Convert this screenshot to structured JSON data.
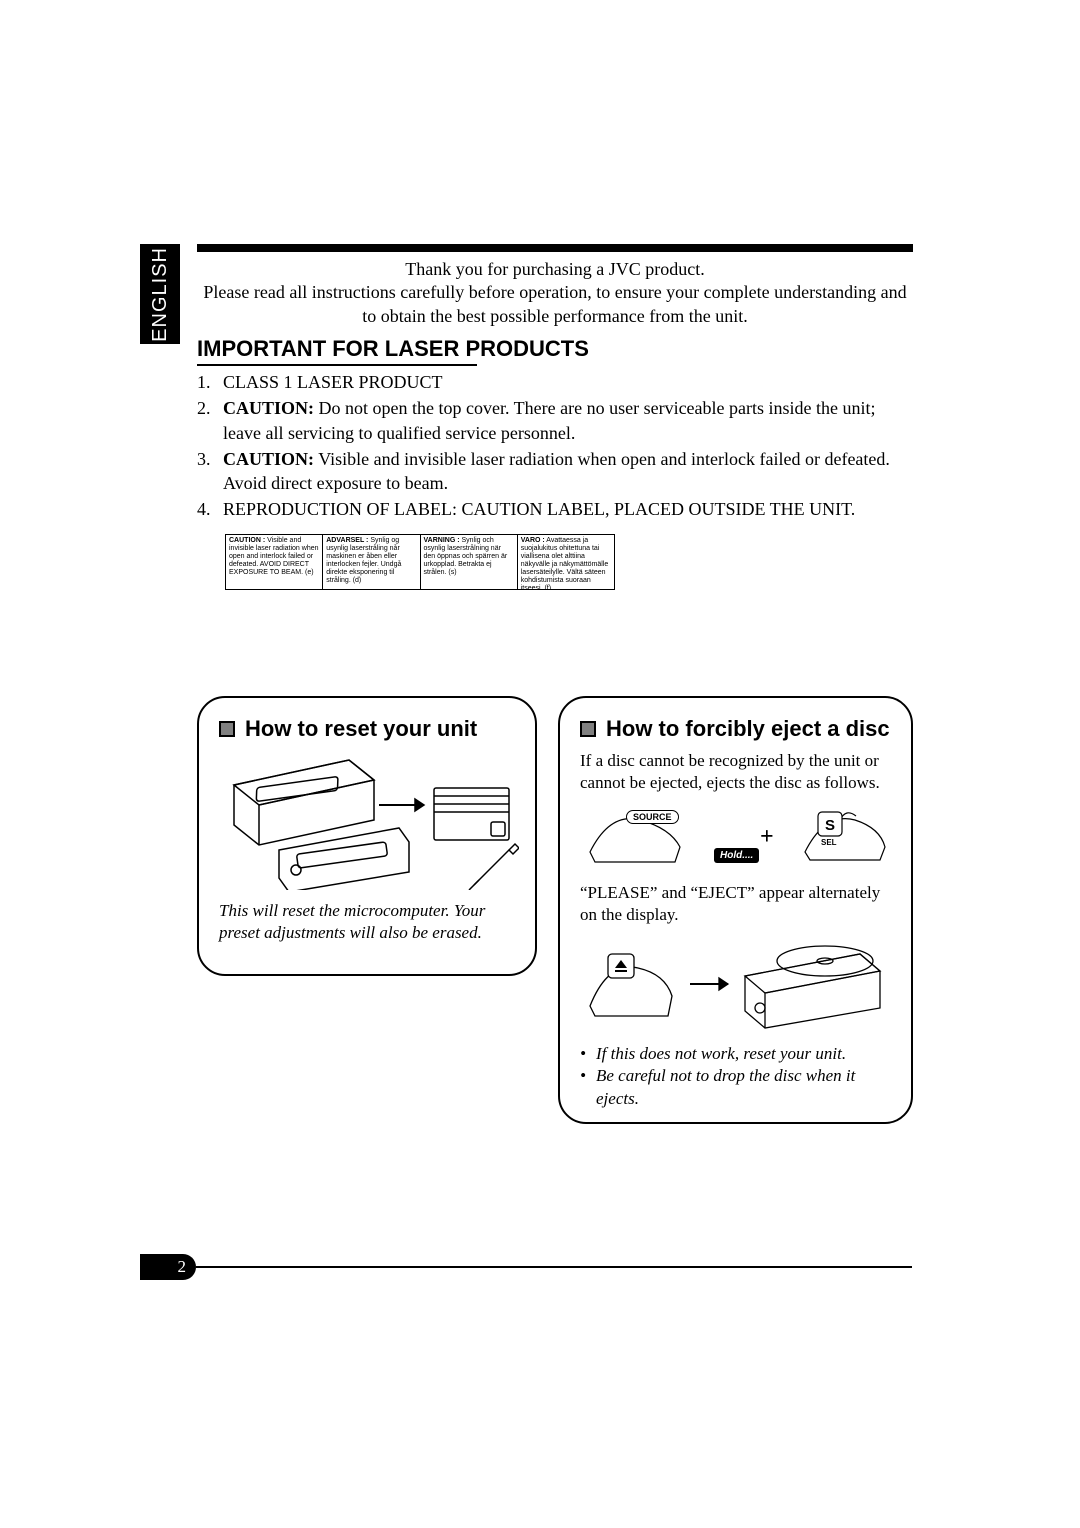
{
  "language_tab": "ENGLISH",
  "intro": {
    "line1": "Thank you for purchasing a JVC product.",
    "line2": "Please read all instructions carefully before operation, to ensure your complete understanding and to obtain the best possible performance from the unit."
  },
  "laser_section": {
    "title": "IMPORTANT FOR LASER PRODUCTS",
    "items": [
      {
        "n": "1.",
        "text_html": "CLASS 1 LASER PRODUCT"
      },
      {
        "n": "2.",
        "text_html": "<b>CAUTION:</b> Do not open the top cover. There are no user serviceable parts inside the unit; leave all servicing to qualified service personnel."
      },
      {
        "n": "3.",
        "text_html": "<b>CAUTION:</b> Visible and invisible laser radiation when open and interlock failed or defeated. Avoid direct exposure to beam."
      },
      {
        "n": "4.",
        "text_html": "REPRODUCTION OF LABEL: CAUTION LABEL, PLACED OUTSIDE THE UNIT."
      }
    ]
  },
  "caution_label": {
    "cols": [
      "<b>CAUTION :</b> Visible and invisible laser radiation when open and interlock failed or defeated. AVOID DIRECT EXPOSURE TO BEAM.                (e)",
      "<b>ADVARSEL :</b> Synlig og usynlig laserstråling når maskinen er åben eller interlocken fejler. Undgå direkte eksponering til stråling.                (d)",
      "<b>VARNING :</b> Synlig och osynlig laserstrålning när den öppnas och spärren är urkopplad. Betrakta ej strålen.                (s)",
      "<b>VARO :</b> Avattaessa ja suojalukitus ohitettuna tai viallisena olet alttiina näkyvälle ja näkymättömälle lasersäteilylle. Vältä säteen kohdistumista suoraan itseesi. (f)"
    ]
  },
  "reset_box": {
    "title": "How to reset your unit",
    "note": "This will reset the microcomputer. Your preset adjustments will also be erased."
  },
  "eject_box": {
    "title": "How to forcibly eject a disc",
    "intro": "If a disc cannot be recognized by the unit or cannot be ejected, ejects the disc as follows.",
    "source_label": "SOURCE",
    "plus": "+",
    "s_label": "S",
    "sel_label": "SEL",
    "hold_label": "Hold....",
    "after": "“PLEASE” and “EJECT” appear alternately on the display.",
    "bullets": [
      "If this does not work, reset your unit.",
      "Be careful not to drop the disc when it ejects."
    ]
  },
  "page_number": "2",
  "colors": {
    "black": "#000000",
    "white": "#ffffff",
    "grey": "#808080"
  }
}
